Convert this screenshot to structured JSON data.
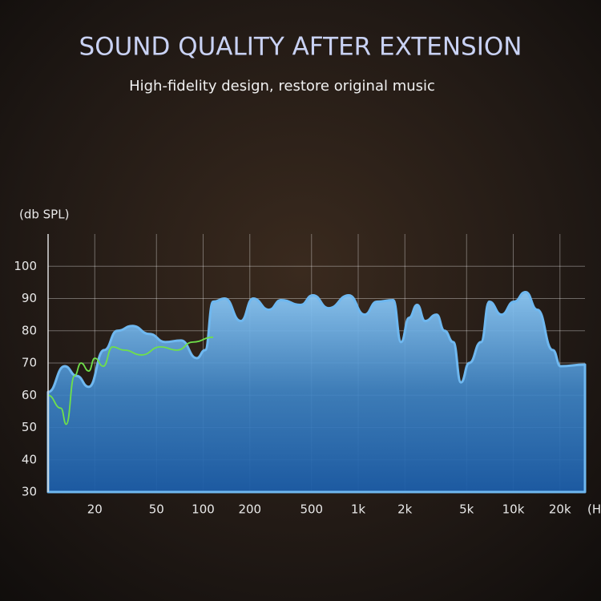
{
  "chart_data": {
    "type": "area",
    "title": "SOUND QUALITY AFTER EXTENSION",
    "subtitle": "High-fidelity design, restore original music",
    "y_label": "(db SPL)",
    "x_label": "(H",
    "x_scale": "log",
    "xlim": [
      10,
      29000
    ],
    "ylim": [
      30,
      110
    ],
    "yticks": [
      30,
      40,
      50,
      60,
      70,
      80,
      90,
      100
    ],
    "xticks": [
      20,
      50,
      100,
      200,
      500,
      {
        "value": 1000,
        "label": "1k"
      },
      {
        "value": 2000,
        "label": "2k"
      },
      {
        "value": 5000,
        "label": "5k"
      },
      {
        "value": 10000,
        "label": "10k"
      },
      {
        "value": 20000,
        "label": "20k"
      }
    ],
    "grid": true,
    "series": [
      {
        "kind": "area",
        "color": "#6fb8f0",
        "x": [
          10,
          12.8,
          15.3,
          18.3,
          23,
          28,
          35,
          45,
          57,
          72,
          91,
          103,
          116,
          138,
          175,
          210,
          266,
          318,
          425,
          510,
          645,
          870,
          1100,
          1320,
          1680,
          1890,
          2130,
          2400,
          2700,
          3200,
          3600,
          4100,
          4600,
          5200,
          6200,
          7000,
          8400,
          10100,
          12000,
          14300,
          18000,
          20200,
          29000
        ],
        "values": [
          61,
          69,
          66,
          62.6,
          74,
          80,
          81.5,
          79,
          76.5,
          77,
          71.5,
          74,
          89,
          90,
          83,
          90,
          86.5,
          89.5,
          88,
          91,
          87,
          91,
          85,
          89,
          89.5,
          76.5,
          84,
          88,
          83,
          85,
          80,
          76.5,
          64,
          70,
          76.5,
          89,
          85,
          89,
          92,
          86.5,
          74,
          69,
          69.5
        ]
      },
      {
        "kind": "line",
        "color": "#6fe04a",
        "x": [
          10,
          12.1,
          13.1,
          14.8,
          16.3,
          18.3,
          20,
          22.7,
          26,
          31,
          40,
          53,
          68,
          86,
          116
        ],
        "values": [
          60,
          56,
          51,
          66,
          70,
          67.5,
          71.5,
          69,
          75,
          74,
          72.5,
          75,
          74,
          76.5,
          78
        ]
      }
    ]
  }
}
